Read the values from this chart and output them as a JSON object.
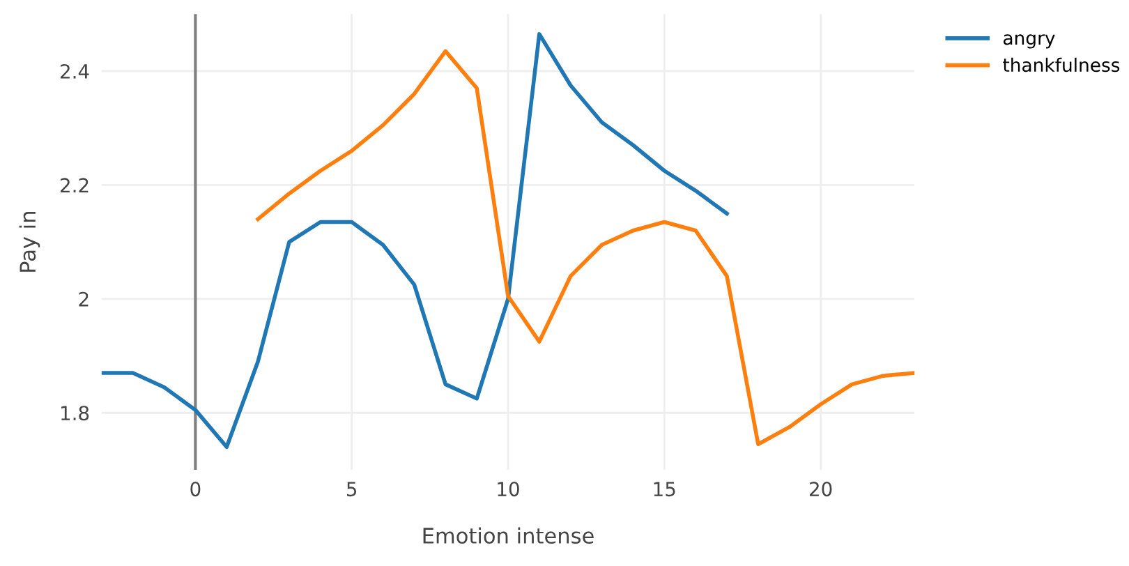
{
  "chart_data": {
    "type": "line",
    "xlabel": "Emotion intense",
    "ylabel": "Pay in",
    "xlim": [
      -3,
      23
    ],
    "ylim": [
      1.7,
      2.5
    ],
    "xticks": [
      0,
      5,
      10,
      15,
      20
    ],
    "yticks": [
      1.8,
      2,
      2.2,
      2.4
    ],
    "grid": true,
    "legend": "top right",
    "marker": "none",
    "line_style": "solid",
    "ref_lines": [
      {
        "axis": "x",
        "value": 0,
        "label": null,
        "color": "#808080"
      }
    ],
    "series": [
      {
        "name": "angry",
        "color": "#1f77b4",
        "x": [
          -3,
          -2,
          -1,
          0,
          1,
          2,
          3,
          4,
          5,
          6,
          7,
          8,
          9,
          10,
          11,
          12,
          13,
          14,
          15,
          16,
          17
        ],
        "values": [
          1.87,
          1.87,
          1.845,
          1.805,
          1.74,
          1.89,
          2.1,
          2.135,
          2.135,
          2.095,
          2.025,
          1.85,
          1.825,
          2.0,
          2.465,
          2.375,
          2.31,
          2.27,
          2.225,
          2.19,
          2.15
        ]
      },
      {
        "name": "thankfulness",
        "color": "#ff7f0e",
        "x": [
          2,
          3,
          4,
          5,
          6,
          7,
          8,
          9,
          10,
          11,
          12,
          13,
          14,
          15,
          16,
          17,
          18,
          19,
          20,
          21,
          22,
          23
        ],
        "values": [
          2.14,
          2.185,
          2.225,
          2.26,
          2.305,
          2.36,
          2.435,
          2.37,
          2.005,
          1.925,
          2.04,
          2.095,
          2.12,
          2.135,
          2.12,
          2.04,
          1.745,
          1.775,
          1.815,
          1.85,
          1.865,
          1.87
        ]
      }
    ]
  }
}
